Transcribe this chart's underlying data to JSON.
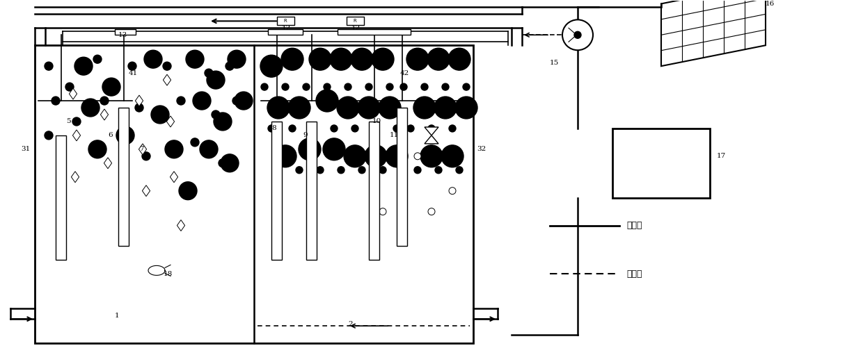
{
  "bg_color": "#ffffff",
  "line_color": "#000000",
  "fig_width": 12.4,
  "fig_height": 5.24,
  "dpi": 100,
  "legend_solid_label": "污水管",
  "legend_dashed_label": "曙气管"
}
